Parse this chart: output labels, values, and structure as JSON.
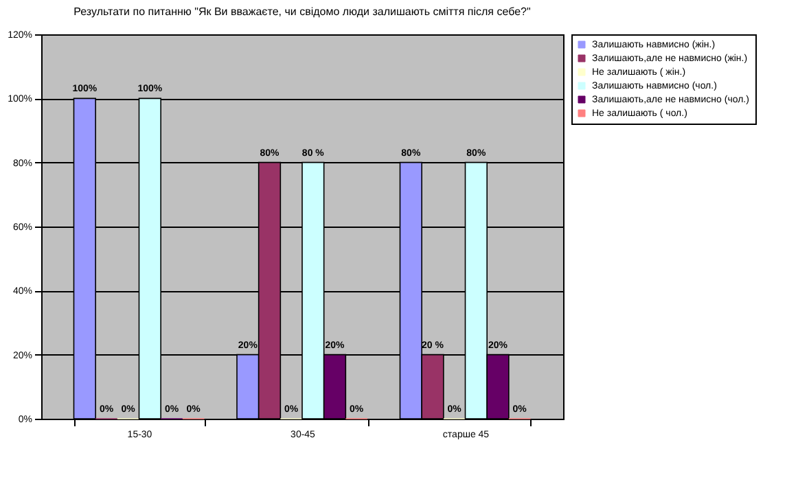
{
  "chart_data": {
    "type": "bar",
    "title": "Результати по питанню \"Як Ви вважаєте, чи свідомо люди залишають сміття після себе?\"",
    "categories": [
      "15-30",
      "30-45",
      "старше 45"
    ],
    "series": [
      {
        "name": "Залишають навмисно (жін.)",
        "color": "#9999ff",
        "values": [
          100,
          20,
          80
        ],
        "value_labels": [
          "100%",
          "20%",
          "80%"
        ]
      },
      {
        "name": "Залишають,але не навмисно (жін.)",
        "color": "#993366",
        "values": [
          0,
          80,
          20
        ],
        "value_labels": [
          "0%",
          "80%",
          "20 %"
        ]
      },
      {
        "name": "Не залишають ( жін.)",
        "color": "#ffffcc",
        "values": [
          0,
          0,
          0
        ],
        "value_labels": [
          "0%",
          "0%",
          "0%"
        ]
      },
      {
        "name": "Залишають навмисно (чол.)",
        "color": "#ccffff",
        "values": [
          100,
          80,
          80
        ],
        "value_labels": [
          "100%",
          "80 %",
          "80%"
        ]
      },
      {
        "name": "Залишають,але не навмисно (чол.)",
        "color": "#660066",
        "values": [
          0,
          20,
          20
        ],
        "value_labels": [
          "0%",
          "20%",
          "20%"
        ]
      },
      {
        "name": "Не залишають ( чол.)",
        "color": "#ff8080",
        "values": [
          0,
          0,
          0
        ],
        "value_labels": [
          "0%",
          "0%",
          "0%"
        ]
      }
    ],
    "ylim": [
      0,
      120
    ],
    "yticks": [
      {
        "value": 0,
        "label": "0%"
      },
      {
        "value": 20,
        "label": "20%"
      },
      {
        "value": 40,
        "label": "40%"
      },
      {
        "value": 60,
        "label": "60%"
      },
      {
        "value": 80,
        "label": "80%"
      },
      {
        "value": 100,
        "label": "100%"
      },
      {
        "value": 120,
        "label": "120%"
      }
    ],
    "grid": "y",
    "legend": "right"
  }
}
